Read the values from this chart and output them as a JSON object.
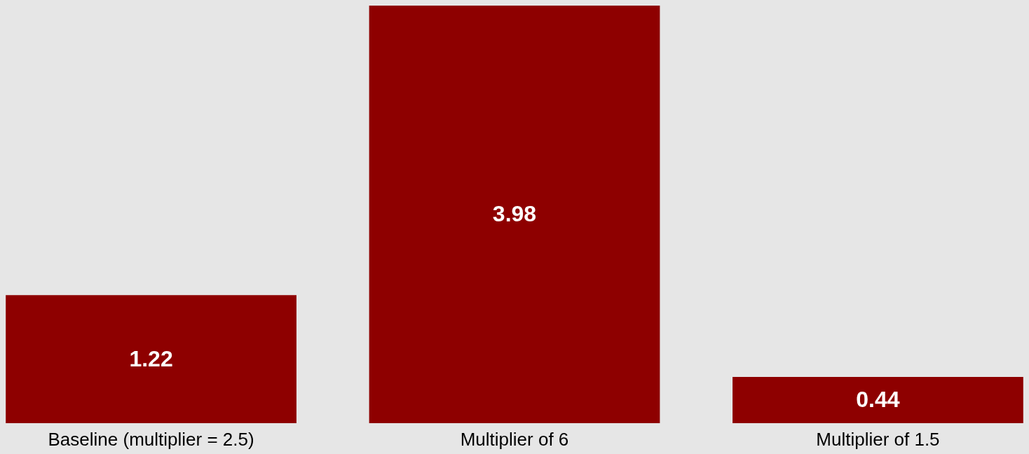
{
  "chart_data": {
    "type": "bar",
    "categories": [
      "Baseline (multiplier = 2.5)",
      "Multiplier of 6",
      "Multiplier of 1.5"
    ],
    "values": [
      1.22,
      3.98,
      0.44
    ],
    "color": "#8e0000",
    "data_labels": true
  }
}
